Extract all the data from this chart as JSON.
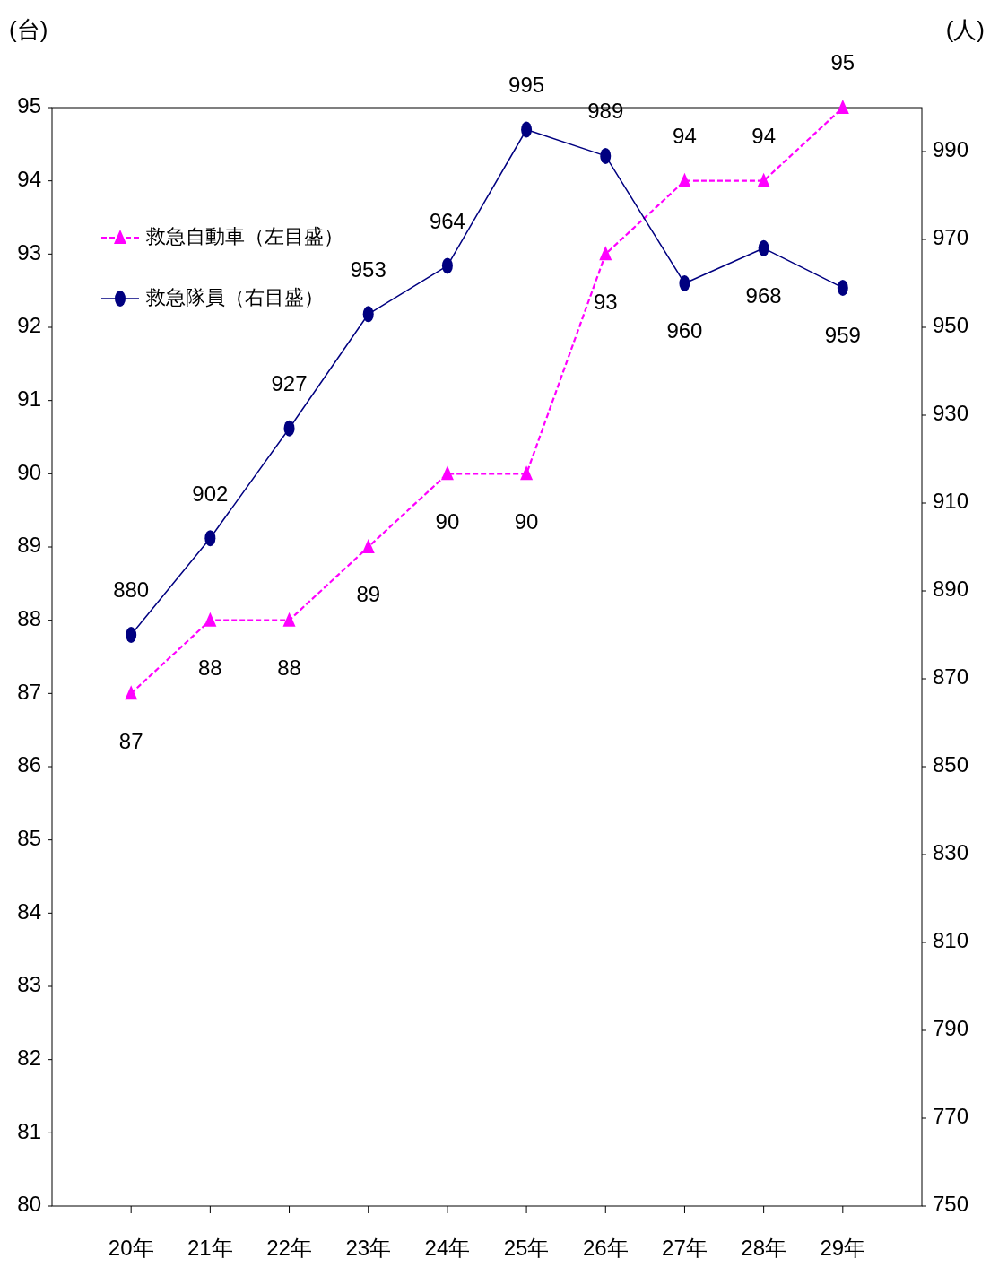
{
  "chart_data": {
    "type": "line",
    "ylabel": "(台)",
    "y2label": "(人)",
    "categories": [
      "20年",
      "21年",
      "22年",
      "23年",
      "24年",
      "25年",
      "26年",
      "27年",
      "28年",
      "29年"
    ],
    "series": [
      {
        "name": "救急自動車（左目盛）",
        "color": "#ff00ff",
        "marker": "triangle",
        "line_style": "dashed",
        "values": [
          87,
          88,
          88,
          89,
          90,
          90,
          93,
          94,
          94,
          95
        ]
      },
      {
        "name": "救急隊員（右目盛）",
        "color": "#000080",
        "marker": "circle",
        "line_style": "solid",
        "axis": "y2",
        "values": [
          880,
          902,
          927,
          953,
          964,
          995,
          989,
          960,
          968,
          959
        ]
      }
    ],
    "ylim": [
      80,
      95
    ],
    "yticks": [
      80,
      81,
      82,
      83,
      84,
      85,
      86,
      87,
      88,
      89,
      90,
      91,
      92,
      93,
      94,
      95
    ],
    "y2lim": [
      750,
      1000
    ],
    "y2ticks": [
      750,
      770,
      790,
      810,
      830,
      850,
      870,
      890,
      910,
      930,
      950,
      970,
      990
    ],
    "data_labels": true,
    "grid": false,
    "legend": "top left"
  }
}
